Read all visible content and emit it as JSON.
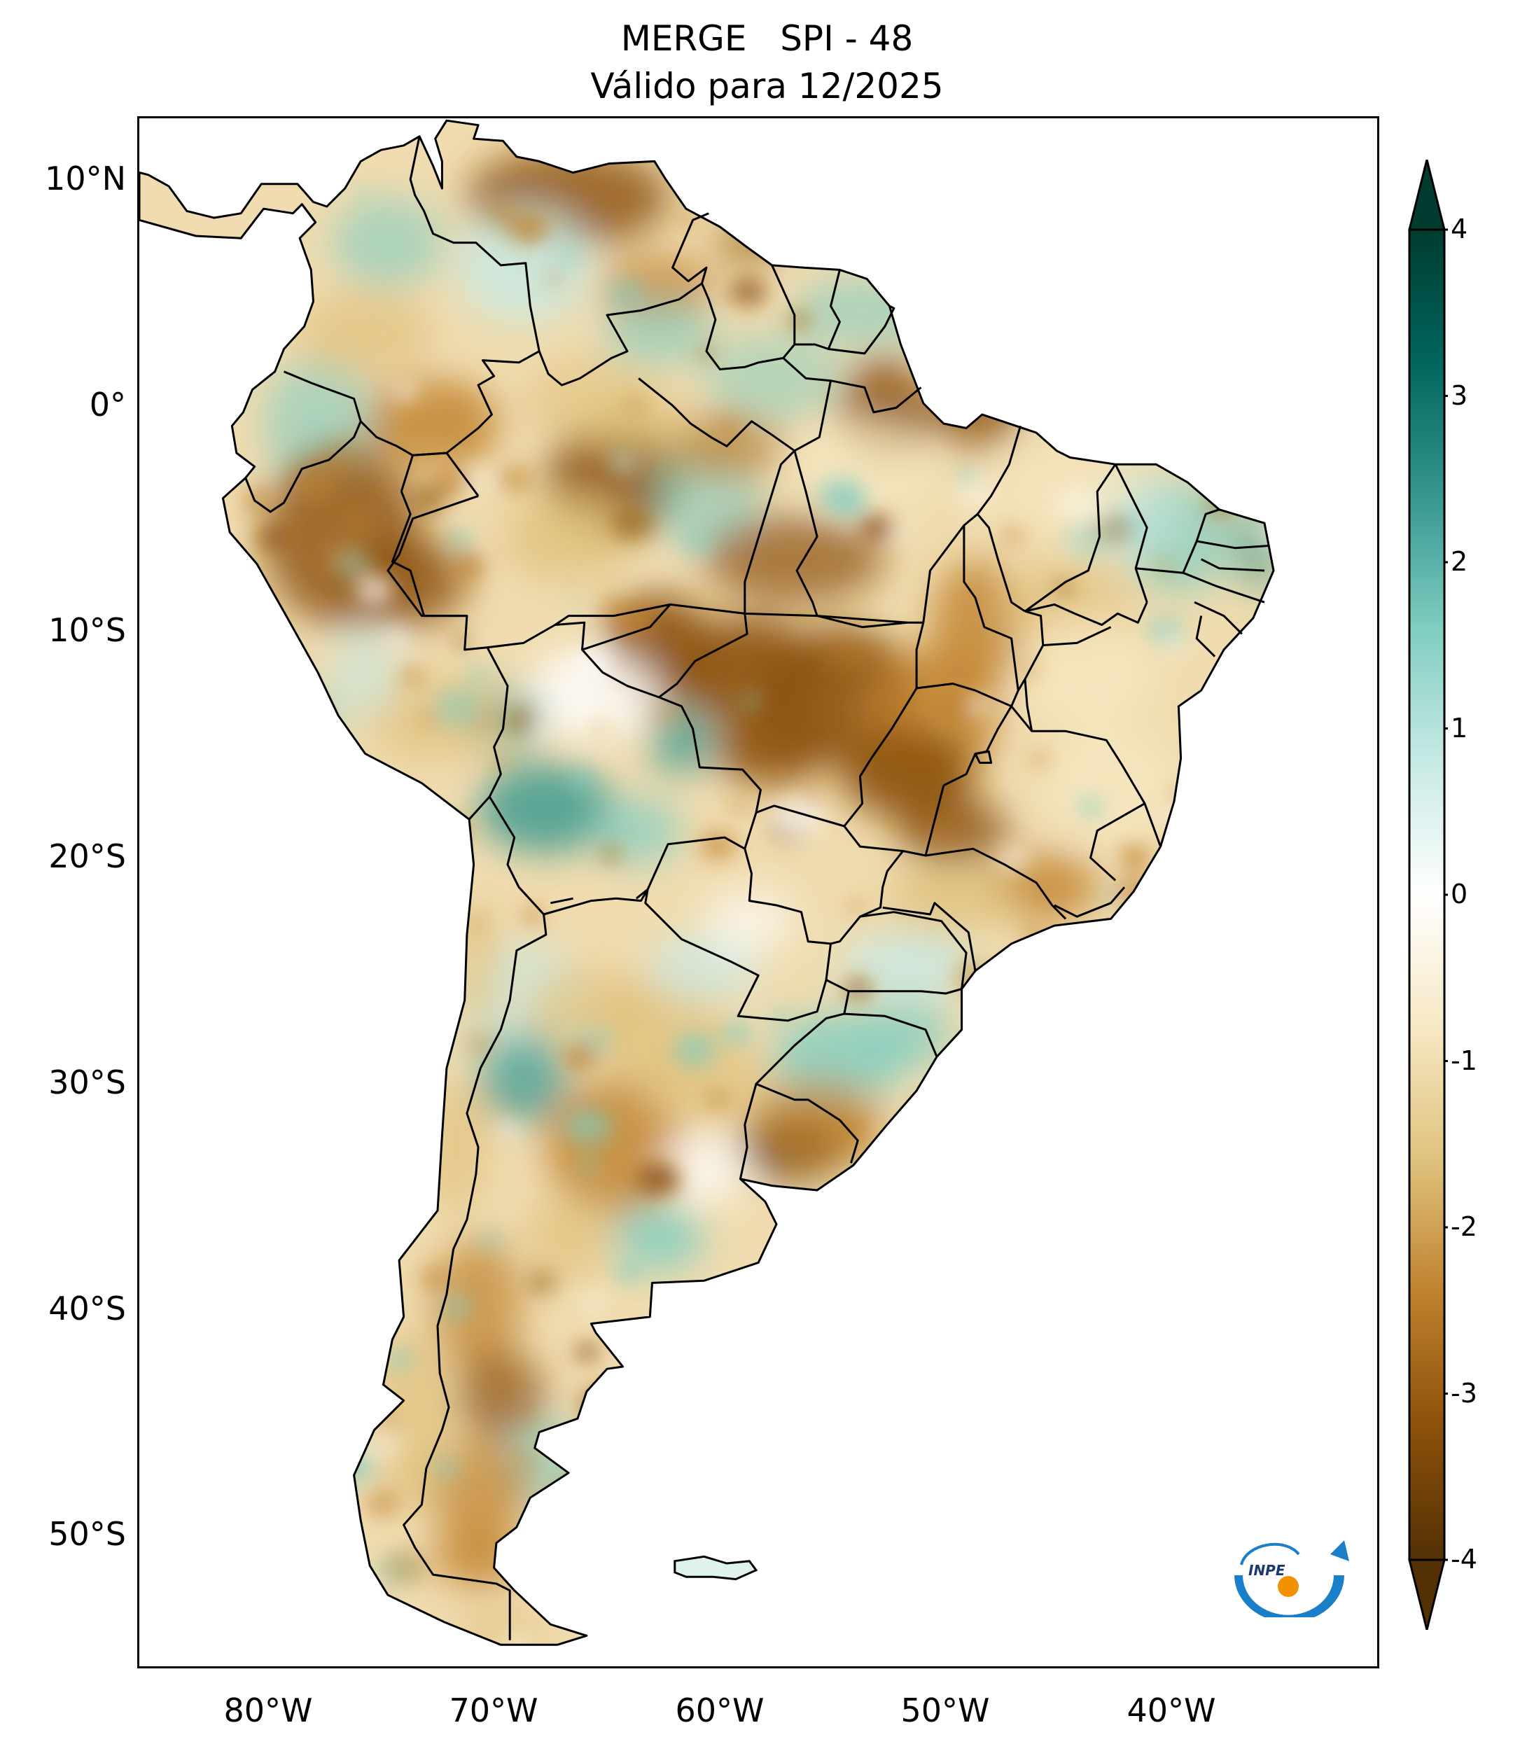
{
  "title": {
    "line1": "MERGE   SPI - 48",
    "line2": "Válido para 12/2025"
  },
  "map": {
    "region": "South America",
    "lon_range": [
      -85,
      -30
    ],
    "lat_range": [
      -56,
      13
    ],
    "latitude_labels": [
      "10°N",
      "0°",
      "10°S",
      "20°S",
      "30°S",
      "40°S",
      "50°S"
    ],
    "longitude_labels": [
      "80°W",
      "70°W",
      "60°W",
      "50°W",
      "40°W"
    ]
  },
  "colorbar": {
    "ticks": [
      "4",
      "3",
      "2",
      "1",
      "0",
      "-1",
      "-2",
      "-3",
      "-4"
    ],
    "range": [
      -4,
      4
    ],
    "extend": "both",
    "colormap": "BrBG",
    "colors": [
      "#543005",
      "#8c510a",
      "#bf812d",
      "#dfc27d",
      "#f6e8c3",
      "#ffffff",
      "#c7eae5",
      "#80cdc1",
      "#35978f",
      "#01665e",
      "#003c30"
    ]
  },
  "logo": {
    "text": "INPE",
    "ring_color": "#1a7ec8",
    "dot_color": "#f39200"
  }
}
